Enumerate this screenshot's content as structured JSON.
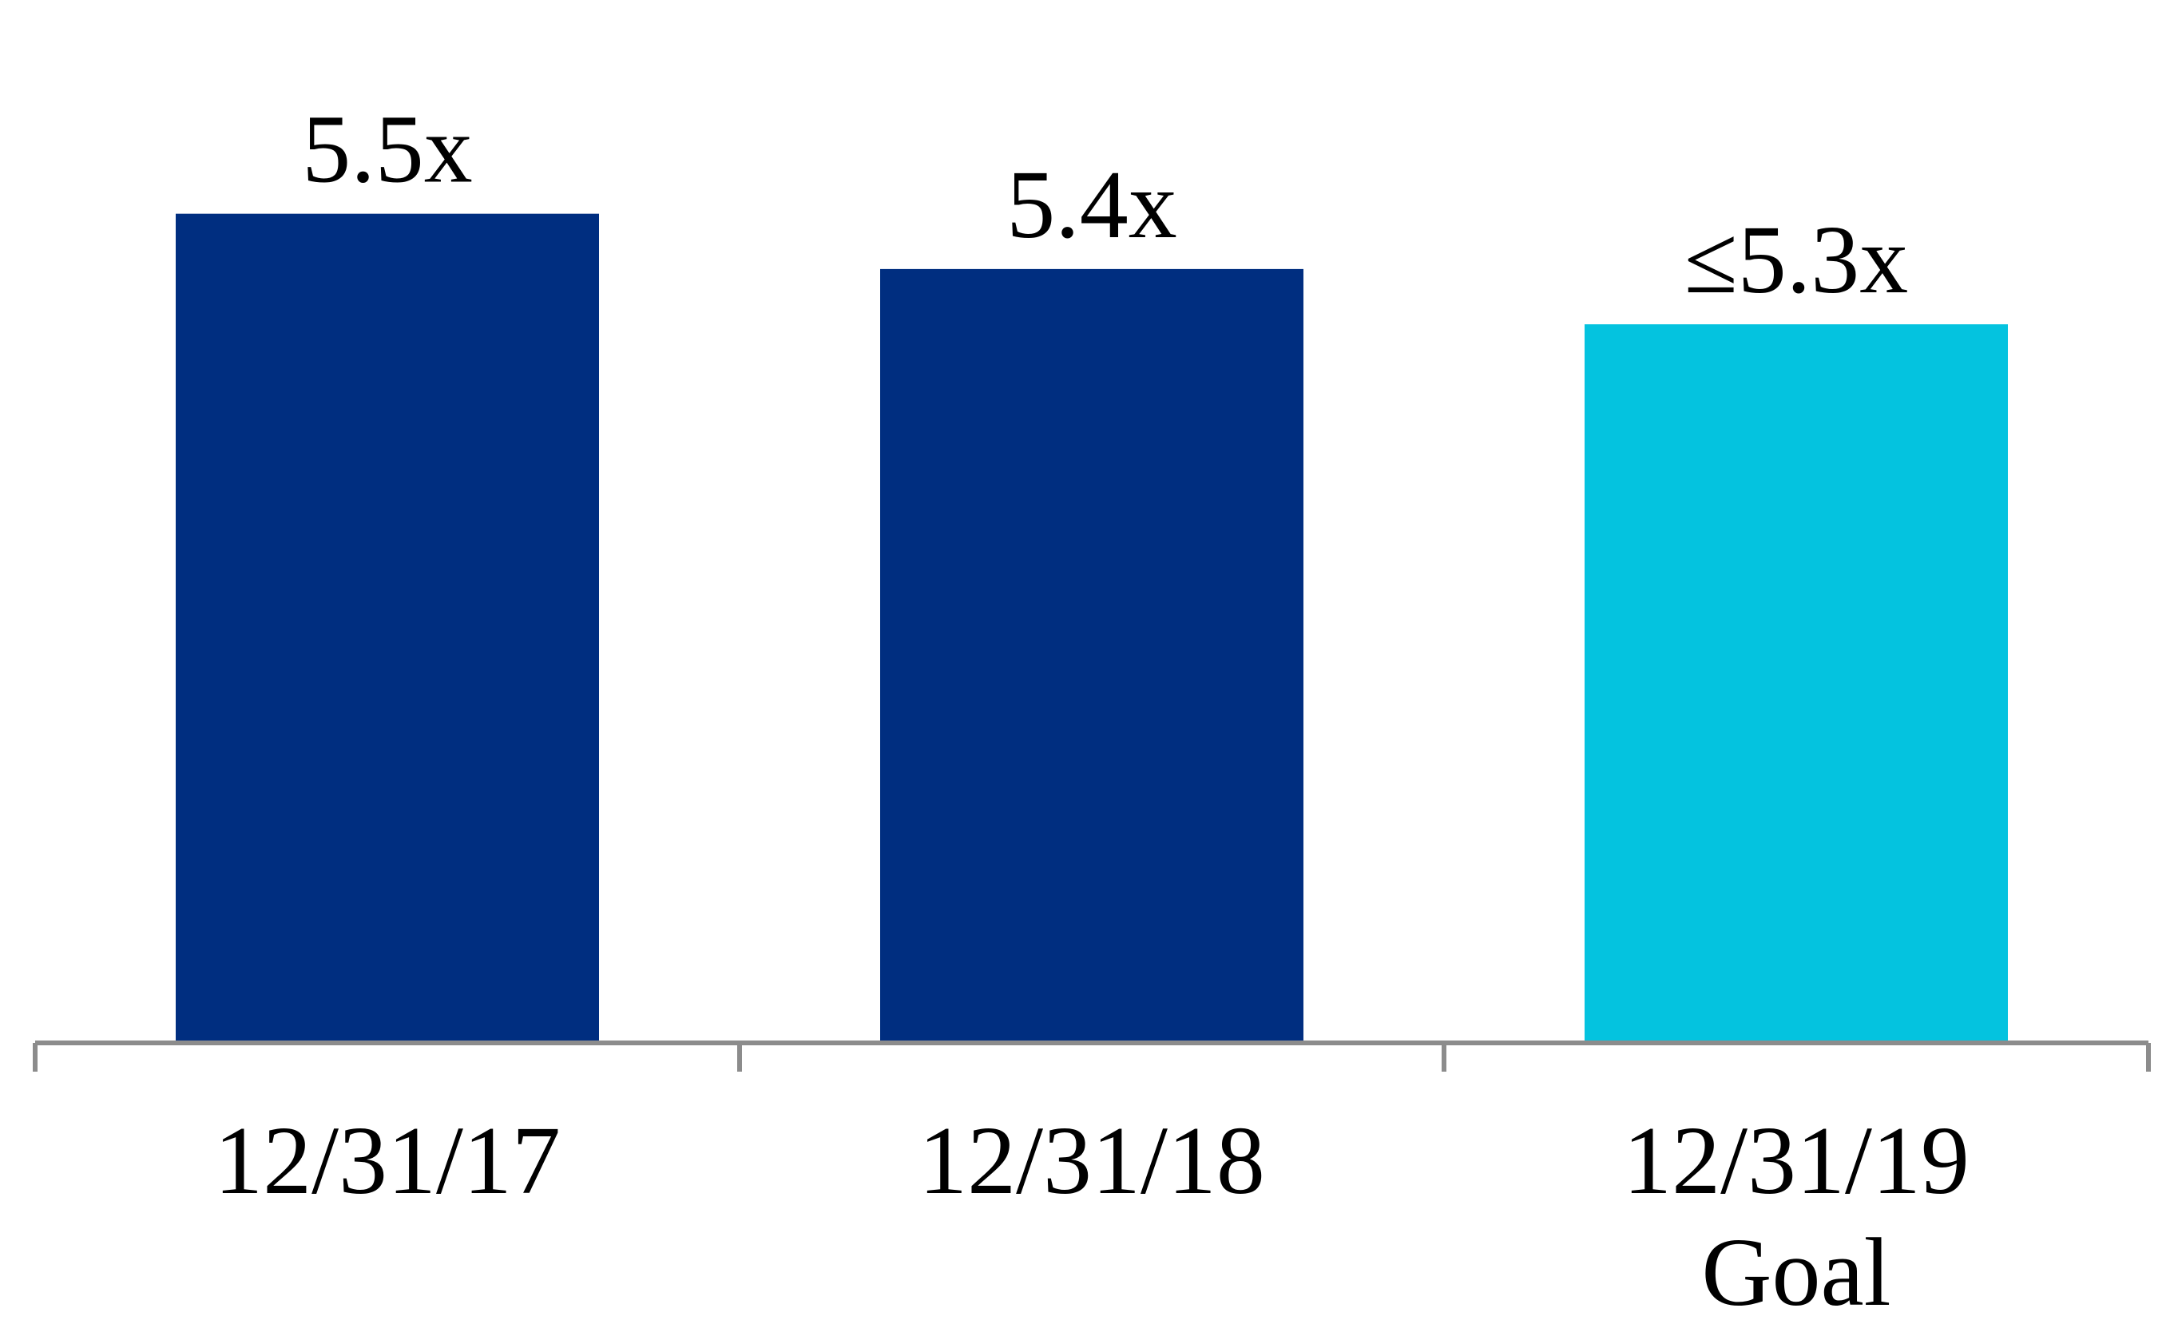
{
  "chart_data": {
    "type": "bar",
    "title": "",
    "xlabel": "",
    "ylabel": "",
    "categories": [
      [
        "12/31/17"
      ],
      [
        "12/31/18"
      ],
      [
        "12/31/19",
        "Goal"
      ]
    ],
    "values": [
      5.5,
      5.4,
      5.3
    ],
    "data_labels": [
      "5.5x",
      "5.4x",
      "≤5.3x"
    ],
    "colors": [
      "#002E80",
      "#002E80",
      "#04C3DF"
    ],
    "axis_color": "#8C8C8C",
    "ylim": [
      4.0,
      5.8
    ],
    "grid": false,
    "legend": "none"
  }
}
